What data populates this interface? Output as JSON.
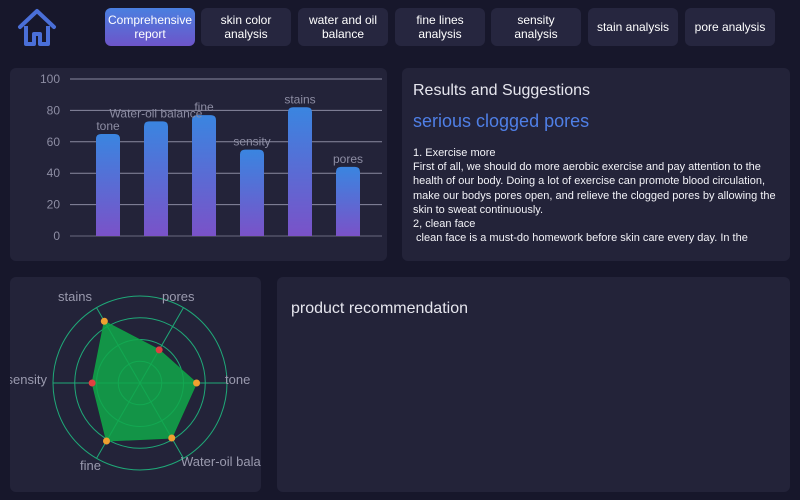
{
  "nav": {
    "home_icon": "home-icon",
    "tabs": [
      {
        "label": "Comprehensive report",
        "active": true
      },
      {
        "label": "skin color analysis",
        "active": false
      },
      {
        "label": "water and oil balance",
        "active": false
      },
      {
        "label": "fine lines analysis",
        "active": false
      },
      {
        "label": "sensity analysis",
        "active": false
      },
      {
        "label": "stain analysis",
        "active": false
      },
      {
        "label": "pore analysis",
        "active": false
      }
    ]
  },
  "results": {
    "title": "Results and Suggestions",
    "diagnosis": "serious clogged pores",
    "lines": [
      "1. Exercise more",
      "First of all, we should do more aerobic exercise and pay attention to the health of our body. Doing a lot of exercise can promote blood circulation, make our bodys pores open, and relieve the clogged pores by allowing the skin to sweat continuously.",
      "2, clean face",
      " clean face is a must-do homework before skin care every day. In the"
    ]
  },
  "product": {
    "title": "product recommendation"
  },
  "colors": {
    "accent": "#4f7fe6",
    "bar_top": "#3a85e0",
    "bar_bottom": "#7a52c8",
    "radar_fill": "#10a84a",
    "radar_ring": "#1fa978",
    "point_warm": "#f0a030",
    "point_alert": "#e04040"
  },
  "chart_data": [
    {
      "type": "bar",
      "categories": [
        "tone",
        "Water-oil balance",
        "fine",
        "sensity",
        "stains",
        "pores"
      ],
      "values": [
        65,
        73,
        77,
        55,
        82,
        44
      ],
      "ylim": [
        0,
        100
      ],
      "yticks": [
        "0",
        "20",
        "40",
        "60",
        "80",
        "100"
      ],
      "grid": true,
      "title": "",
      "xlabel": "",
      "ylabel": ""
    },
    {
      "type": "radar",
      "axes": [
        "tone",
        "Water-oil balance",
        "fine",
        "sensity",
        "stains",
        "pores"
      ],
      "values": [
        65,
        73,
        77,
        55,
        82,
        44
      ],
      "point_status": [
        "warm",
        "warm",
        "warm",
        "alert",
        "warm",
        "alert"
      ],
      "rmax": 100
    }
  ]
}
